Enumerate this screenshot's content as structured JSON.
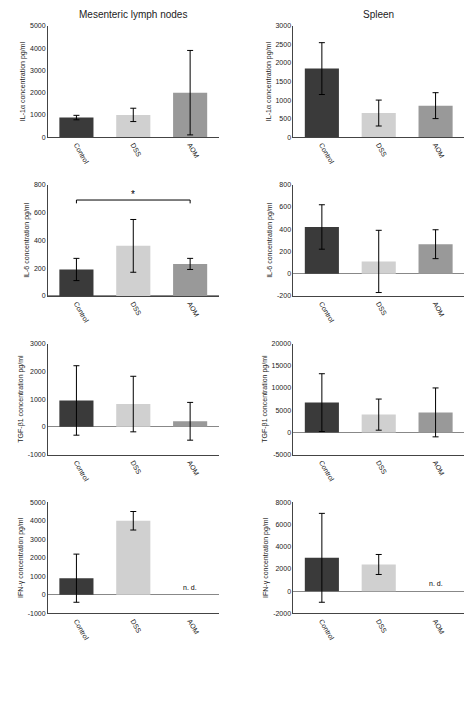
{
  "chart_data": [
    {
      "type": "bar",
      "title": "Mesenteric lymph nodes",
      "categories": [
        "Control",
        "DSS",
        "AOM"
      ],
      "colors": [
        "#3a3a3a",
        "#d0d0d0",
        "#999999"
      ],
      "values": [
        880,
        1000,
        2000
      ],
      "errors": [
        100,
        300,
        1900
      ],
      "ylabel": "IL-1α concentration pg/ml",
      "ylim": [
        0,
        5000
      ],
      "yticks": [
        0,
        1000,
        2000,
        3000,
        4000,
        5000
      ],
      "grid": false
    },
    {
      "type": "bar",
      "title": "Spleen",
      "categories": [
        "Control",
        "DSS",
        "AOM"
      ],
      "colors": [
        "#3a3a3a",
        "#d0d0d0",
        "#999999"
      ],
      "values": [
        1850,
        650,
        850
      ],
      "errors": [
        700,
        350,
        350
      ],
      "ylabel": "IL-1α concentration pg/ml",
      "ylim": [
        0,
        3000
      ],
      "yticks": [
        0,
        500,
        1000,
        1500,
        2000,
        2500,
        3000
      ],
      "grid": false
    },
    {
      "type": "bar",
      "categories": [
        "Control",
        "DSS",
        "AOM"
      ],
      "colors": [
        "#3a3a3a",
        "#d0d0d0",
        "#999999"
      ],
      "values": [
        190,
        360,
        230
      ],
      "errors": [
        80,
        190,
        40
      ],
      "ylabel": "IL-6 concentration pg/ml",
      "ylim": [
        0,
        800
      ],
      "yticks": [
        0,
        200,
        400,
        600,
        800
      ],
      "grid": false,
      "annotations": [
        {
          "text": "*",
          "from": "Control",
          "to": "AOM",
          "y": 690
        }
      ]
    },
    {
      "type": "bar",
      "categories": [
        "Control",
        "DSS",
        "AOM"
      ],
      "colors": [
        "#3a3a3a",
        "#d0d0d0",
        "#999999"
      ],
      "values": [
        420,
        110,
        265
      ],
      "errors": [
        200,
        280,
        130
      ],
      "ylabel": "IL-6 concentration pg/ml",
      "ylim": [
        -200,
        800
      ],
      "yticks": [
        -200,
        0,
        200,
        400,
        600,
        800
      ],
      "grid": false
    },
    {
      "type": "bar",
      "categories": [
        "Control",
        "DSS",
        "AOM"
      ],
      "colors": [
        "#3a3a3a",
        "#d0d0d0",
        "#999999"
      ],
      "values": [
        950,
        820,
        200
      ],
      "errors": [
        1250,
        1000,
        680
      ],
      "ylabel": "TGF-β1 concentration pg/ml",
      "ylim": [
        -1000,
        3000
      ],
      "yticks": [
        -1000,
        0,
        1000,
        2000,
        3000
      ],
      "grid": false
    },
    {
      "type": "bar",
      "categories": [
        "Control",
        "DSS",
        "AOM"
      ],
      "colors": [
        "#3a3a3a",
        "#d0d0d0",
        "#999999"
      ],
      "values": [
        6700,
        4000,
        4500
      ],
      "errors": [
        6500,
        3500,
        5500
      ],
      "ylabel": "TGF-β1 concentration pg/ml",
      "ylim": [
        -5000,
        20000
      ],
      "yticks": [
        -5000,
        0,
        5000,
        10000,
        15000,
        20000
      ],
      "grid": false
    },
    {
      "type": "bar",
      "categories": [
        "Control",
        "DSS",
        "AOM"
      ],
      "colors": [
        "#3a3a3a",
        "#d0d0d0",
        "#999999"
      ],
      "values": [
        900,
        4000,
        null
      ],
      "errors": [
        1300,
        500,
        null
      ],
      "ylabel": "IFN-γ concentration pg/ml",
      "ylim": [
        -1000,
        5000
      ],
      "yticks": [
        -1000,
        0,
        1000,
        2000,
        3000,
        4000,
        5000
      ],
      "grid": false,
      "annotations": [
        {
          "text": "n. d.",
          "category": "AOM"
        }
      ]
    },
    {
      "type": "bar",
      "categories": [
        "Control",
        "DSS",
        "AOM"
      ],
      "colors": [
        "#3a3a3a",
        "#d0d0d0",
        "#999999"
      ],
      "values": [
        3000,
        2400,
        null
      ],
      "errors": [
        4000,
        900,
        null
      ],
      "ylabel": "IFN-γ concentration pg/ml",
      "ylim": [
        -2000,
        8000
      ],
      "yticks": [
        -2000,
        0,
        2000,
        4000,
        6000,
        8000
      ],
      "grid": false,
      "annotations": [
        {
          "text": "n. d.",
          "category": "AOM"
        }
      ]
    }
  ]
}
